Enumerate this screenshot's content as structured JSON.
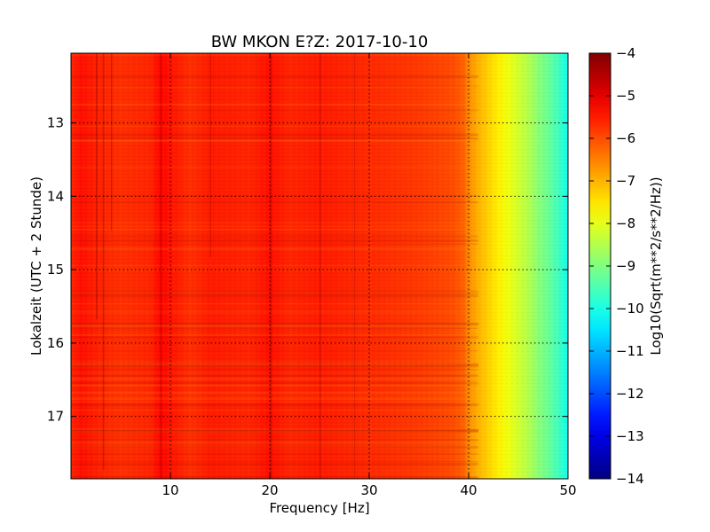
{
  "chart_data": {
    "type": "heatmap",
    "title": "BW MKON E?Z: 2017-10-10",
    "xlabel": "Frequency [Hz]",
    "ylabel": "Lokalzeit (UTC + 2 Stunde)",
    "xlim": [
      0,
      50
    ],
    "ylim": [
      12.05,
      17.85
    ],
    "x_ticks": [
      "10",
      "20",
      "30",
      "40",
      "50"
    ],
    "y_ticks": [
      "13",
      "14",
      "15",
      "16",
      "17"
    ],
    "grid": true,
    "colormap": "jet",
    "colorbar": {
      "label": "Log10(Sqrt(m**2/s**2/Hz))",
      "range": [
        -14,
        -4
      ],
      "ticks": [
        "−4",
        "−5",
        "−6",
        "−7",
        "−8",
        "−9",
        "−10",
        "−11",
        "−12",
        "−13",
        "−14"
      ]
    },
    "frequency_profile": {
      "frequency_hz": [
        0,
        1,
        3,
        5,
        8,
        9,
        12,
        14,
        18,
        20,
        22,
        25,
        28,
        32,
        35,
        37,
        38.5,
        39.5,
        40,
        41,
        42,
        43,
        44,
        45,
        46,
        47,
        48,
        49,
        50
      ],
      "log10_amplitude": [
        -5.6,
        -5.4,
        -5.6,
        -5.7,
        -5.6,
        -5.3,
        -5.7,
        -5.5,
        -5.6,
        -5.4,
        -5.6,
        -5.5,
        -5.6,
        -5.7,
        -5.8,
        -5.9,
        -6.0,
        -6.2,
        -6.6,
        -7.0,
        -7.3,
        -7.6,
        -7.9,
        -8.2,
        -8.5,
        -8.9,
        -9.2,
        -9.6,
        -10.1
      ]
    }
  }
}
